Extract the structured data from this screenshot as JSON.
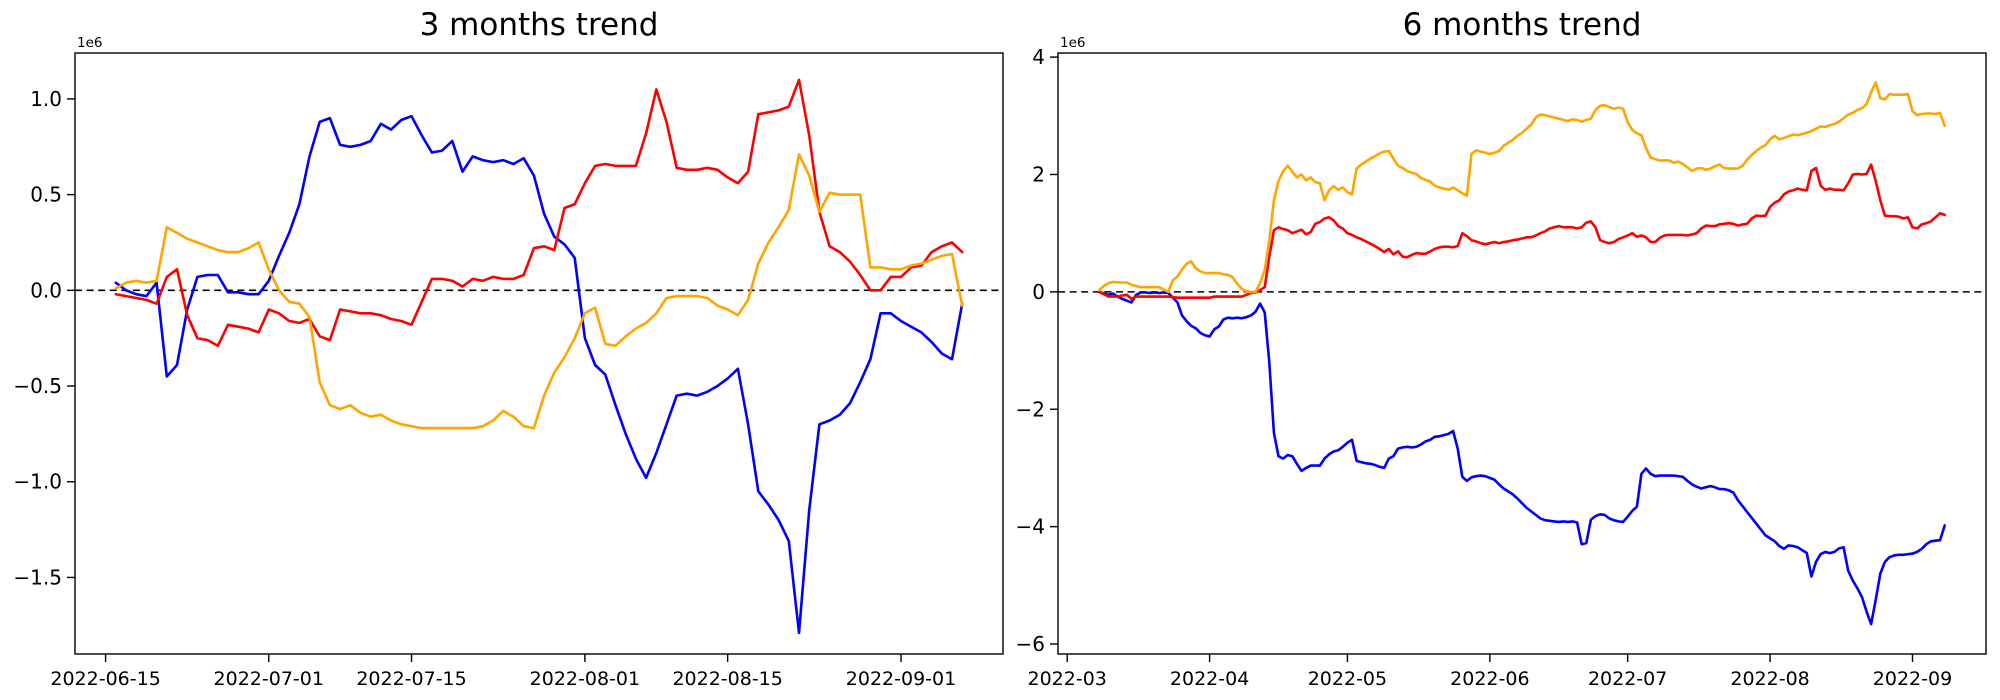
{
  "chart_data": [
    {
      "type": "line",
      "title": "3 months trend",
      "offset_label": "1e6",
      "grid": false,
      "legend": "none",
      "x_axis": {
        "xlim": [
          "2022-06-12",
          "2022-09-11"
        ],
        "tick_dates": [
          "2022-06-15",
          "2022-07-01",
          "2022-07-15",
          "2022-08-01",
          "2022-08-15",
          "2022-09-01"
        ],
        "tick_labels": [
          "2022-06-15",
          "2022-07-01",
          "2022-07-15",
          "2022-08-01",
          "2022-08-15",
          "2022-09-01"
        ]
      },
      "y_axis": {
        "ylim": [
          -1.9,
          1.24
        ],
        "ticks": [
          -1.5,
          -1.0,
          -0.5,
          0.0,
          0.5,
          1.0
        ],
        "tick_labels": [
          "−1.5",
          "−1.0",
          "−0.5",
          "0.0",
          "0.5",
          "1.0"
        ],
        "unit": "1e6"
      },
      "zero_line": {
        "value": 0,
        "style": "dashed",
        "color": "#000000"
      },
      "series": [
        {
          "name": "blue",
          "color": "#0000ff",
          "start_date": "2022-06-16",
          "frequency": "daily",
          "values_1e6": [
            0.04,
            0.0,
            -0.02,
            -0.03,
            0.04,
            -0.45,
            -0.39,
            -0.1,
            0.07,
            0.08,
            0.08,
            -0.01,
            -0.01,
            -0.02,
            -0.02,
            0.05,
            0.18,
            0.3,
            0.45,
            0.7,
            0.88,
            0.9,
            0.76,
            0.75,
            0.76,
            0.78,
            0.87,
            0.84,
            0.89,
            0.91,
            0.81,
            0.72,
            0.73,
            0.78,
            0.62,
            0.7,
            0.68,
            0.67,
            0.68,
            0.66,
            0.69,
            0.6,
            0.4,
            0.28,
            0.24,
            0.17,
            -0.25,
            -0.39,
            -0.44,
            -0.6,
            -0.75,
            -0.88,
            -0.98,
            -0.85,
            -0.7,
            -0.55,
            -0.54,
            -0.55,
            -0.53,
            -0.5,
            -0.46,
            -0.41,
            -0.7,
            -1.05,
            -1.12,
            -1.2,
            -1.31,
            -1.79,
            -1.15,
            -0.7,
            -0.68,
            -0.65,
            -0.59,
            -0.48,
            -0.36,
            -0.12,
            -0.12,
            -0.16,
            -0.19,
            -0.22,
            -0.27,
            -0.33,
            -0.36,
            -0.07
          ]
        },
        {
          "name": "red",
          "color": "#ff0000",
          "start_date": "2022-06-16",
          "frequency": "daily",
          "values_1e6": [
            -0.02,
            -0.03,
            -0.04,
            -0.05,
            -0.07,
            0.07,
            0.11,
            -0.13,
            -0.25,
            -0.26,
            -0.29,
            -0.18,
            -0.19,
            -0.2,
            -0.22,
            -0.1,
            -0.12,
            -0.16,
            -0.17,
            -0.15,
            -0.24,
            -0.26,
            -0.1,
            -0.11,
            -0.12,
            -0.12,
            -0.13,
            -0.15,
            -0.16,
            -0.18,
            -0.06,
            0.06,
            0.06,
            0.05,
            0.02,
            0.06,
            0.05,
            0.07,
            0.06,
            0.06,
            0.08,
            0.22,
            0.23,
            0.21,
            0.43,
            0.45,
            0.56,
            0.65,
            0.66,
            0.65,
            0.65,
            0.65,
            0.82,
            1.05,
            0.88,
            0.64,
            0.63,
            0.63,
            0.64,
            0.63,
            0.59,
            0.56,
            0.62,
            0.92,
            0.93,
            0.94,
            0.96,
            1.1,
            0.81,
            0.41,
            0.23,
            0.2,
            0.15,
            0.08,
            0.0,
            0.0,
            0.07,
            0.07,
            0.12,
            0.13,
            0.2,
            0.23,
            0.25,
            0.2
          ]
        },
        {
          "name": "orange",
          "color": "#ffa500",
          "start_date": "2022-06-16",
          "frequency": "daily",
          "values_1e6": [
            0.01,
            0.04,
            0.05,
            0.04,
            0.05,
            0.33,
            0.3,
            0.27,
            0.25,
            0.23,
            0.21,
            0.2,
            0.2,
            0.22,
            0.25,
            0.11,
            0.0,
            -0.06,
            -0.07,
            -0.14,
            -0.48,
            -0.6,
            -0.62,
            -0.6,
            -0.64,
            -0.66,
            -0.65,
            -0.68,
            -0.7,
            -0.71,
            -0.72,
            -0.72,
            -0.72,
            -0.72,
            -0.72,
            -0.72,
            -0.71,
            -0.68,
            -0.63,
            -0.66,
            -0.71,
            -0.72,
            -0.55,
            -0.43,
            -0.35,
            -0.25,
            -0.12,
            -0.09,
            -0.28,
            -0.29,
            -0.24,
            -0.2,
            -0.17,
            -0.12,
            -0.04,
            -0.03,
            -0.03,
            -0.03,
            -0.04,
            -0.08,
            -0.1,
            -0.13,
            -0.05,
            0.14,
            0.25,
            0.33,
            0.42,
            0.71,
            0.6,
            0.41,
            0.51,
            0.5,
            0.5,
            0.5,
            0.12,
            0.12,
            0.11,
            0.11,
            0.13,
            0.14,
            0.16,
            0.18,
            0.19,
            -0.08
          ]
        }
      ]
    },
    {
      "type": "line",
      "title": "6 months trend",
      "offset_label": "1e6",
      "grid": false,
      "legend": "none",
      "x_axis": {
        "xlim": [
          "2022-02-27",
          "2022-09-17"
        ],
        "tick_dates": [
          "2022-03-01",
          "2022-04-01",
          "2022-05-01",
          "2022-06-01",
          "2022-07-01",
          "2022-08-01",
          "2022-09-01"
        ],
        "tick_labels": [
          "2022-03",
          "2022-04",
          "2022-05",
          "2022-06",
          "2022-07",
          "2022-08",
          "2022-09"
        ]
      },
      "y_axis": {
        "ylim": [
          -6.17,
          4.07
        ],
        "ticks": [
          -6,
          -4,
          -2,
          0,
          2,
          4
        ],
        "tick_labels": [
          "−6",
          "−4",
          "−2",
          "0",
          "2",
          "4"
        ],
        "unit": "1e6"
      },
      "zero_line": {
        "value": 0,
        "style": "dashed",
        "color": "#000000"
      },
      "series": [
        {
          "name": "blue",
          "color": "#0000ff",
          "start_date": "2022-03-08",
          "frequency": "daily",
          "values_1e6": [
            0.0,
            -0.03,
            -0.05,
            -0.03,
            -0.08,
            -0.12,
            -0.15,
            -0.18,
            -0.05,
            -0.01,
            -0.01,
            -0.02,
            -0.01,
            -0.02,
            -0.01,
            -0.02,
            -0.1,
            -0.18,
            -0.4,
            -0.5,
            -0.58,
            -0.62,
            -0.7,
            -0.74,
            -0.76,
            -0.64,
            -0.59,
            -0.47,
            -0.44,
            -0.45,
            -0.44,
            -0.45,
            -0.43,
            -0.4,
            -0.34,
            -0.2,
            -0.35,
            -1.2,
            -2.4,
            -2.8,
            -2.84,
            -2.78,
            -2.8,
            -2.93,
            -3.05,
            -3.0,
            -2.96,
            -2.96,
            -2.96,
            -2.84,
            -2.77,
            -2.72,
            -2.7,
            -2.64,
            -2.57,
            -2.52,
            -2.88,
            -2.9,
            -2.92,
            -2.93,
            -2.95,
            -2.98,
            -3.0,
            -2.84,
            -2.8,
            -2.67,
            -2.65,
            -2.64,
            -2.65,
            -2.64,
            -2.6,
            -2.55,
            -2.52,
            -2.47,
            -2.46,
            -2.44,
            -2.42,
            -2.37,
            -2.67,
            -3.15,
            -3.22,
            -3.16,
            -3.14,
            -3.13,
            -3.14,
            -3.17,
            -3.2,
            -3.28,
            -3.35,
            -3.4,
            -3.45,
            -3.52,
            -3.6,
            -3.68,
            -3.74,
            -3.8,
            -3.86,
            -3.89,
            -3.9,
            -3.91,
            -3.92,
            -3.91,
            -3.92,
            -3.91,
            -3.93,
            -4.3,
            -4.28,
            -3.88,
            -3.82,
            -3.79,
            -3.8,
            -3.86,
            -3.89,
            -3.91,
            -3.92,
            -3.83,
            -3.73,
            -3.66,
            -3.1,
            -3.01,
            -3.1,
            -3.14,
            -3.13,
            -3.13,
            -3.13,
            -3.13,
            -3.14,
            -3.15,
            -3.22,
            -3.28,
            -3.32,
            -3.35,
            -3.33,
            -3.31,
            -3.33,
            -3.36,
            -3.36,
            -3.38,
            -3.42,
            -3.55,
            -3.65,
            -3.75,
            -3.85,
            -3.95,
            -4.05,
            -4.15,
            -4.2,
            -4.25,
            -4.33,
            -4.38,
            -4.32,
            -4.33,
            -4.35,
            -4.4,
            -4.45,
            -4.85,
            -4.6,
            -4.47,
            -4.43,
            -4.45,
            -4.43,
            -4.37,
            -4.35,
            -4.75,
            -4.92,
            -5.05,
            -5.2,
            -5.45,
            -5.66,
            -5.25,
            -4.8,
            -4.6,
            -4.52,
            -4.49,
            -4.48,
            -4.48,
            -4.47,
            -4.46,
            -4.43,
            -4.38,
            -4.3,
            -4.25,
            -4.24,
            -4.23,
            -3.98
          ]
        },
        {
          "name": "red",
          "color": "#ff0000",
          "start_date": "2022-03-08",
          "frequency": "daily",
          "values_1e6": [
            0.0,
            -0.04,
            -0.08,
            -0.08,
            -0.08,
            -0.06,
            -0.05,
            -0.12,
            -0.08,
            -0.08,
            -0.08,
            -0.08,
            -0.08,
            -0.08,
            -0.08,
            -0.08,
            -0.09,
            -0.1,
            -0.1,
            -0.1,
            -0.1,
            -0.1,
            -0.1,
            -0.1,
            -0.1,
            -0.08,
            -0.08,
            -0.08,
            -0.08,
            -0.08,
            -0.08,
            -0.08,
            -0.05,
            -0.02,
            -0.01,
            0.03,
            0.08,
            0.6,
            1.05,
            1.1,
            1.07,
            1.05,
            1.0,
            1.03,
            1.06,
            0.98,
            1.02,
            1.16,
            1.19,
            1.25,
            1.27,
            1.22,
            1.12,
            1.08,
            1.0,
            0.97,
            0.93,
            0.9,
            0.86,
            0.82,
            0.78,
            0.73,
            0.68,
            0.73,
            0.64,
            0.69,
            0.6,
            0.59,
            0.63,
            0.66,
            0.65,
            0.65,
            0.69,
            0.73,
            0.76,
            0.77,
            0.77,
            0.76,
            0.78,
            1.0,
            0.95,
            0.88,
            0.86,
            0.83,
            0.81,
            0.83,
            0.85,
            0.83,
            0.85,
            0.86,
            0.88,
            0.89,
            0.91,
            0.93,
            0.93,
            0.96,
            1.0,
            1.03,
            1.08,
            1.1,
            1.12,
            1.1,
            1.1,
            1.1,
            1.08,
            1.1,
            1.18,
            1.2,
            1.1,
            0.88,
            0.85,
            0.83,
            0.85,
            0.9,
            0.93,
            0.96,
            1.0,
            0.94,
            0.96,
            0.93,
            0.85,
            0.85,
            0.92,
            0.96,
            0.97,
            0.97,
            0.97,
            0.97,
            0.96,
            0.98,
            1.0,
            1.08,
            1.13,
            1.12,
            1.12,
            1.15,
            1.16,
            1.17,
            1.16,
            1.13,
            1.15,
            1.16,
            1.25,
            1.3,
            1.29,
            1.3,
            1.45,
            1.52,
            1.56,
            1.66,
            1.71,
            1.73,
            1.76,
            1.74,
            1.73,
            2.06,
            2.11,
            1.81,
            1.74,
            1.76,
            1.74,
            1.74,
            1.73,
            1.85,
            2.0,
            2.01,
            2.0,
            2.01,
            2.17,
            1.89,
            1.56,
            1.3,
            1.29,
            1.29,
            1.28,
            1.25,
            1.27,
            1.1,
            1.08,
            1.15,
            1.17,
            1.2,
            1.27,
            1.34,
            1.31
          ]
        },
        {
          "name": "orange",
          "color": "#ffa500",
          "start_date": "2022-03-08",
          "frequency": "daily",
          "values_1e6": [
            0.03,
            0.1,
            0.15,
            0.17,
            0.16,
            0.16,
            0.16,
            0.12,
            0.1,
            0.08,
            0.08,
            0.08,
            0.08,
            0.08,
            0.04,
            0.0,
            0.2,
            0.26,
            0.38,
            0.48,
            0.52,
            0.4,
            0.35,
            0.32,
            0.32,
            0.32,
            0.32,
            0.3,
            0.29,
            0.25,
            0.14,
            0.05,
            0.01,
            0.0,
            0.0,
            0.15,
            0.37,
            0.88,
            1.56,
            1.89,
            2.05,
            2.15,
            2.05,
            1.95,
            2.0,
            1.9,
            1.95,
            1.87,
            1.85,
            1.56,
            1.73,
            1.8,
            1.74,
            1.78,
            1.7,
            1.66,
            2.1,
            2.17,
            2.22,
            2.27,
            2.31,
            2.36,
            2.39,
            2.4,
            2.27,
            2.15,
            2.11,
            2.06,
            2.03,
            2.01,
            1.94,
            1.91,
            1.88,
            1.81,
            1.78,
            1.76,
            1.74,
            1.78,
            1.73,
            1.68,
            1.64,
            2.35,
            2.41,
            2.39,
            2.37,
            2.35,
            2.37,
            2.4,
            2.49,
            2.54,
            2.59,
            2.66,
            2.71,
            2.78,
            2.85,
            2.97,
            3.02,
            3.01,
            2.99,
            2.97,
            2.95,
            2.93,
            2.91,
            2.94,
            2.93,
            2.9,
            2.93,
            2.95,
            3.1,
            3.17,
            3.18,
            3.15,
            3.12,
            3.14,
            3.12,
            2.89,
            2.76,
            2.7,
            2.67,
            2.45,
            2.29,
            2.26,
            2.24,
            2.24,
            2.24,
            2.2,
            2.22,
            2.18,
            2.12,
            2.06,
            2.1,
            2.11,
            2.08,
            2.1,
            2.14,
            2.17,
            2.11,
            2.1,
            2.1,
            2.1,
            2.15,
            2.25,
            2.33,
            2.4,
            2.46,
            2.5,
            2.6,
            2.66,
            2.6,
            2.62,
            2.65,
            2.68,
            2.67,
            2.69,
            2.71,
            2.74,
            2.78,
            2.82,
            2.81,
            2.84,
            2.86,
            2.9,
            2.96,
            3.02,
            3.05,
            3.1,
            3.13,
            3.2,
            3.4,
            3.57,
            3.3,
            3.28,
            3.37,
            3.36,
            3.36,
            3.36,
            3.37,
            3.08,
            3.01,
            3.03,
            3.04,
            3.04,
            3.03,
            3.05,
            2.83
          ]
        }
      ]
    }
  ]
}
